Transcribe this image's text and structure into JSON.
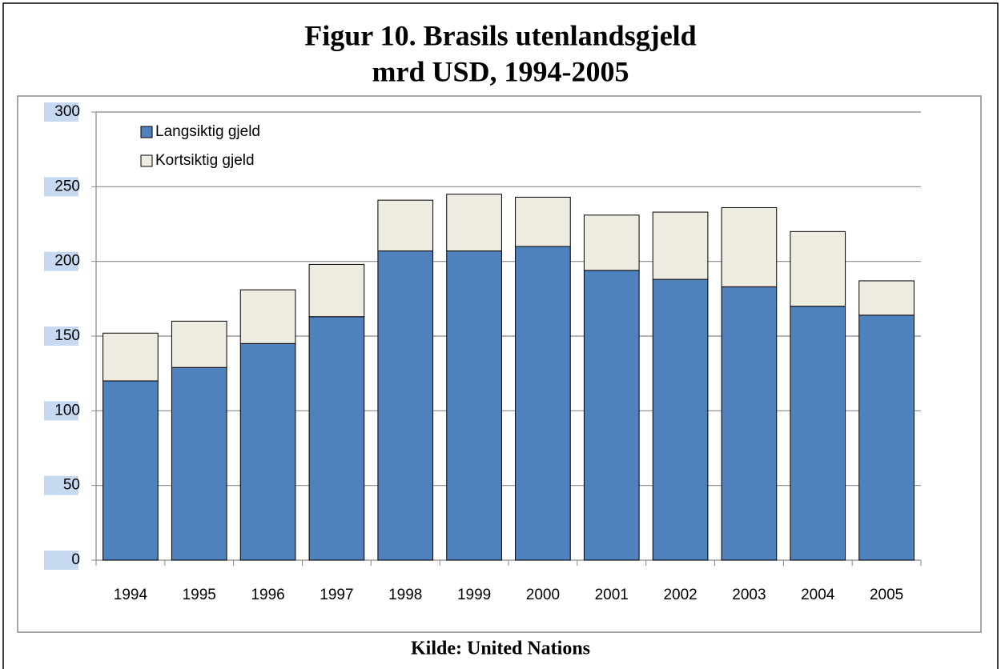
{
  "chart_data": {
    "type": "stacked-bar",
    "title": "Figur 10. Brasils utenlandsgjeld",
    "subtitle": "mrd USD, 1994-2005",
    "source": "Kilde: United Nations",
    "categories": [
      "1994",
      "1995",
      "1996",
      "1997",
      "1998",
      "1999",
      "2000",
      "2001",
      "2002",
      "2003",
      "2004",
      "2005"
    ],
    "series": [
      {
        "name": "Langsiktig gjeld",
        "color": "#4f81bd",
        "values": [
          120,
          129,
          145,
          163,
          207,
          207,
          210,
          194,
          188,
          183,
          170,
          164
        ]
      },
      {
        "name": "Kortsiktig gjeld",
        "color": "#eeece1",
        "values": [
          32,
          31,
          36,
          35,
          34,
          38,
          33,
          37,
          45,
          53,
          50,
          23
        ]
      }
    ],
    "ylim": [
      0,
      300
    ],
    "yticks": [
      0,
      50,
      100,
      150,
      200,
      250,
      300
    ],
    "grid": true,
    "legend": "top-left"
  }
}
